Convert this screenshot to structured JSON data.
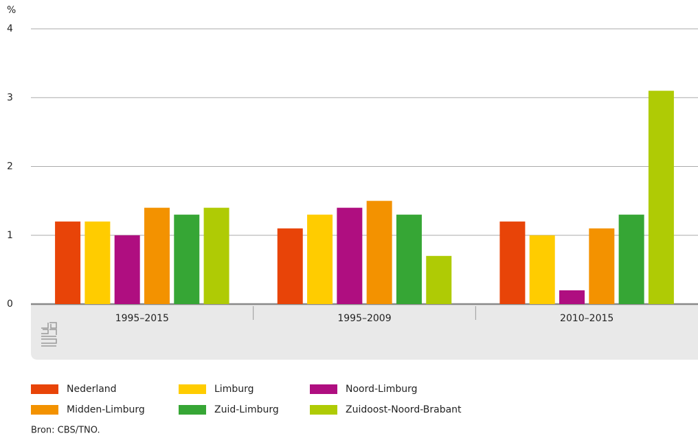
{
  "chart_data": {
    "type": "bar",
    "y_label": "%",
    "categories": [
      "1995–2015",
      "1995–2009",
      "2010–2015"
    ],
    "series": [
      {
        "name": "Nederland",
        "color": "#e84408",
        "values": [
          1.2,
          1.1,
          1.2
        ]
      },
      {
        "name": "Limburg",
        "color": "#ffcc00",
        "values": [
          1.2,
          1.3,
          1.0
        ]
      },
      {
        "name": "Noord-Limburg",
        "color": "#af0e80",
        "values": [
          1.0,
          1.4,
          0.2
        ]
      },
      {
        "name": "Midden-Limburg",
        "color": "#f39200",
        "values": [
          1.4,
          1.5,
          1.1
        ]
      },
      {
        "name": "Zuid-Limburg",
        "color": "#36a635",
        "values": [
          1.3,
          1.3,
          1.3
        ]
      },
      {
        "name": "Zuidoost-Noord-Brabant",
        "color": "#afcb05",
        "values": [
          1.4,
          0.7,
          3.1
        ]
      }
    ],
    "ylim": [
      0,
      4
    ],
    "yticks": [
      0,
      1,
      2,
      3,
      4
    ],
    "grid": true,
    "source": "Bron: CBS/TNO."
  }
}
